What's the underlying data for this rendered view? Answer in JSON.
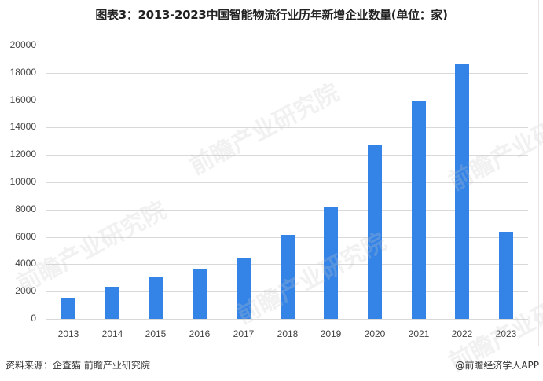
{
  "title": "图表3：2013-2023中国智能物流行业历年新增企业数量(单位：家)",
  "footer": {
    "source": "资料来源：企查猫 前瞻产业研究院",
    "credit": "@前瞻经济学人APP"
  },
  "watermark": "前瞻产业研究院",
  "colors": {
    "bar": "#3483e6",
    "grid": "#d9d9d9"
  },
  "chart_data": {
    "type": "bar",
    "title": "图表3：2013-2023中国智能物流行业历年新增企业数量(单位：家)",
    "xlabel": "",
    "ylabel": "",
    "ylim": [
      0,
      20000
    ],
    "yticks": [
      0,
      2000,
      4000,
      6000,
      8000,
      10000,
      12000,
      14000,
      16000,
      18000,
      20000
    ],
    "grid": true,
    "legend": null,
    "categories": [
      "2013",
      "2014",
      "2015",
      "2016",
      "2017",
      "2018",
      "2019",
      "2020",
      "2021",
      "2022",
      "2023"
    ],
    "values": [
      1550,
      2350,
      3100,
      3650,
      4450,
      6150,
      8200,
      12750,
      15900,
      18600,
      6400
    ]
  }
}
